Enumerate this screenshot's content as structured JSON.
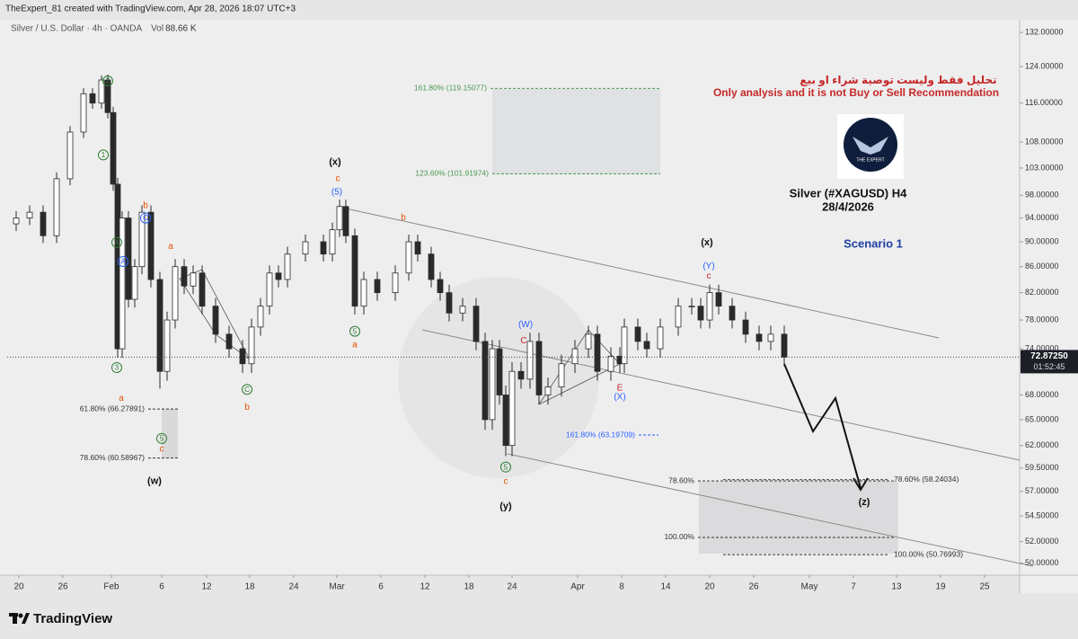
{
  "header": {
    "credit": "TheExpert_81 created with TradingView.com, Apr 28, 2026 18:07 UTC+3",
    "brand": "TradingView"
  },
  "chart_data": {
    "type": "candlestick",
    "symbol": "Silver / U.S. Dollar · 4h · OANDA",
    "volume_label": "Vol",
    "volume": "88.66 K",
    "disclaimer_ar": "تحليل فقط وليست توصية شراء او بيع",
    "disclaimer_en": "Only analysis and it is not Buy or Sell Recommendation",
    "title": "Silver (#XAGUSD) H4",
    "subtitle": "28/4/2026",
    "scenario": "Scenario 1",
    "logo_text": "THE EXPERT",
    "log_scale": true,
    "grid": false,
    "up_color": "#ffffff",
    "down_color": "#2a2a2a",
    "wick_color": "#2a2a2a",
    "xlim": [
      0,
      112.7
    ],
    "xticks": [
      {
        "value": 1.3,
        "label": "20"
      },
      {
        "value": 6.2,
        "label": "26"
      },
      {
        "value": 11.6,
        "label": "Feb"
      },
      {
        "value": 17.2,
        "label": "6"
      },
      {
        "value": 22.2,
        "label": "12"
      },
      {
        "value": 27,
        "label": "18"
      },
      {
        "value": 31.9,
        "label": "24"
      },
      {
        "value": 36.7,
        "label": "Mar"
      },
      {
        "value": 41.6,
        "label": "6"
      },
      {
        "value": 46.5,
        "label": "12"
      },
      {
        "value": 51.4,
        "label": "18"
      },
      {
        "value": 56.2,
        "label": "24"
      },
      {
        "value": 63.5,
        "label": "Apr"
      },
      {
        "value": 68.4,
        "label": "8"
      },
      {
        "value": 73.3,
        "label": "14"
      },
      {
        "value": 78.2,
        "label": "20"
      },
      {
        "value": 83.1,
        "label": "26"
      },
      {
        "value": 89.3,
        "label": "May"
      },
      {
        "value": 94.2,
        "label": "7"
      },
      {
        "value": 99,
        "label": "13"
      },
      {
        "value": 103.9,
        "label": "19"
      },
      {
        "value": 108.8,
        "label": "25"
      }
    ],
    "ylim": [
      48.9,
      135.1
    ],
    "yticks": [
      {
        "value": 132,
        "label": "132.00000"
      },
      {
        "value": 124,
        "label": "124.00000"
      },
      {
        "value": 116,
        "label": "116.00000"
      },
      {
        "value": 108,
        "label": "108.00000"
      },
      {
        "value": 103,
        "label": "103.00000"
      },
      {
        "value": 98,
        "label": "98.00000"
      },
      {
        "value": 94,
        "label": "94.00000"
      },
      {
        "value": 90,
        "label": "90.00000"
      },
      {
        "value": 86,
        "label": "86.00000"
      },
      {
        "value": 82,
        "label": "82.00000"
      },
      {
        "value": 78,
        "label": "78.00000"
      },
      {
        "value": 74,
        "label": "74.00000"
      },
      {
        "value": 68,
        "label": "68.00000"
      },
      {
        "value": 65,
        "label": "65.00000"
      },
      {
        "value": 62,
        "label": "62.00000"
      },
      {
        "value": 59.5,
        "label": "59.50000"
      },
      {
        "value": 57,
        "label": "57.00000"
      },
      {
        "value": 54.5,
        "label": "54.50000"
      },
      {
        "value": 52,
        "label": "52.00000"
      },
      {
        "value": 50,
        "label": "50.00000"
      }
    ],
    "x": [
      1,
      2.5,
      4,
      5.5,
      7,
      8.5,
      9.5,
      10.5,
      11.2,
      11.8,
      12.3,
      12.8,
      13.5,
      14.2,
      15,
      16,
      17,
      17.8,
      18.7,
      19.7,
      20.7,
      21.7,
      23.2,
      24.7,
      26.2,
      27.2,
      28.2,
      29.2,
      30.2,
      31.2,
      33.2,
      35.2,
      36.2,
      37,
      37.7,
      38.7,
      39.7,
      41.2,
      43.2,
      44.7,
      45.7,
      47.2,
      48.2,
      49.2,
      50.7,
      52.2,
      53.2,
      54,
      54.8,
      55.5,
      56.2,
      57.2,
      58.2,
      59.2,
      60.2,
      61.7,
      63.2,
      64.7,
      65.7,
      67.2,
      68.2,
      68.7,
      70.2,
      71.2,
      72.7,
      74.7,
      76.2,
      77.2,
      78.2,
      79.2,
      80.7,
      82.2,
      83.7,
      85,
      86.5
    ],
    "open": [
      93,
      94,
      95,
      91,
      101,
      110,
      118,
      116,
      121,
      114,
      100,
      74,
      94,
      81,
      86,
      95,
      84,
      71,
      78,
      86,
      83,
      85,
      80,
      76,
      74,
      72,
      77,
      80,
      85,
      84,
      88,
      90,
      88,
      92,
      96,
      91,
      80,
      84,
      82,
      85,
      90,
      88,
      84,
      82,
      79,
      80,
      75,
      65,
      74,
      68,
      62,
      71,
      70,
      75,
      68,
      69,
      72,
      74,
      76,
      71,
      73,
      72,
      77,
      75,
      74,
      77,
      80,
      80,
      78,
      82,
      80,
      78,
      76,
      75,
      76
    ],
    "high": [
      95.2,
      96.2,
      96.2,
      102.2,
      111.2,
      119.2,
      119.2,
      122,
      122.2,
      115.2,
      101.2,
      95.2,
      95.2,
      87.2,
      96.2,
      96.2,
      85.2,
      79.2,
      87.2,
      87.2,
      86.2,
      86.2,
      81.2,
      77.2,
      75.2,
      78.2,
      81.2,
      86.2,
      86.2,
      89.2,
      91.2,
      91.2,
      93.2,
      97.2,
      97.2,
      92.2,
      85.2,
      85.2,
      86.2,
      91.2,
      91.2,
      89.2,
      85.2,
      83.2,
      81.2,
      81.2,
      76.2,
      75.2,
      75.2,
      69.2,
      72.2,
      72.2,
      76.2,
      76.2,
      70.2,
      73.2,
      75.2,
      77.2,
      77.2,
      74.2,
      74.2,
      78.2,
      78.2,
      76.2,
      78.2,
      81.2,
      81.2,
      81.2,
      83.2,
      83.2,
      81.2,
      79.2,
      77.2,
      77.2,
      77.2
    ],
    "low": [
      91.8,
      92.8,
      89.8,
      89.8,
      99.8,
      108.8,
      114.8,
      114.8,
      112.8,
      98.8,
      72.8,
      72.8,
      79.8,
      79.8,
      84.8,
      82.8,
      68.8,
      69.8,
      76.8,
      81.8,
      81.8,
      78.8,
      74.8,
      72.8,
      70.8,
      70.8,
      75.8,
      78.8,
      82.8,
      82.8,
      86.8,
      86.8,
      86.8,
      90.8,
      89.8,
      78.8,
      78.8,
      80.8,
      80.8,
      83.8,
      86.8,
      82.8,
      80.8,
      77.8,
      77.8,
      73.8,
      63.8,
      63.8,
      66.8,
      60.8,
      60.8,
      68.8,
      68.8,
      66.8,
      66.8,
      67.8,
      70.8,
      72.8,
      69.8,
      69.8,
      70.8,
      70.8,
      73.8,
      72.8,
      72.8,
      75.8,
      78.8,
      76.8,
      76.8,
      78.8,
      76.8,
      74.8,
      73.8,
      73.8,
      71.67
    ],
    "close": [
      94,
      95,
      91,
      101,
      110,
      118,
      116,
      121,
      114,
      100,
      74,
      94,
      81,
      86,
      95,
      84,
      71,
      78,
      86,
      83,
      85,
      80,
      76,
      74,
      72,
      77,
      80,
      85,
      84,
      88,
      90,
      88,
      92,
      96,
      91,
      80,
      84,
      82,
      85,
      90,
      88,
      84,
      82,
      79,
      80,
      75,
      65,
      74,
      68,
      62,
      71,
      70,
      75,
      68,
      69,
      72,
      74,
      76,
      71,
      73,
      72,
      77,
      75,
      74,
      77,
      80,
      80,
      78,
      82,
      80,
      78,
      76,
      75,
      76,
      72.87
    ],
    "last": {
      "value": 72.8725,
      "label": "72.87250"
    },
    "countdown": "01:52:45",
    "levels": [
      {
        "label": "161.80% (119.15077)",
        "value": 119.15077,
        "x": [
          53.8,
          72.7
        ],
        "side": "left",
        "color": "#4a9a4e"
      },
      {
        "label": "123.60% (101.91974)",
        "value": 101.91974,
        "x": [
          54,
          72.7
        ],
        "side": "left",
        "color": "#4a9a4e"
      },
      {
        "label": "61.80% (66.27891)",
        "value": 66.27891,
        "x": [
          15.7,
          19
        ],
        "side": "left",
        "color": "#333333"
      },
      {
        "label": "78.60% (60.58967)",
        "value": 60.58967,
        "x": [
          15.7,
          19
        ],
        "side": "left",
        "color": "#333333"
      },
      {
        "label": "161.80% (63.19709)",
        "value": 63.19709,
        "x": [
          70.3,
          72.5
        ],
        "side": "left",
        "color": "#2962ff"
      },
      {
        "label": "78.60%",
        "value": 58.1,
        "x": [
          76.9,
          98.7
        ],
        "side": "left",
        "color": "#333333"
      },
      {
        "label": "100.00%",
        "value": 52.4,
        "x": [
          76.9,
          98.7
        ],
        "side": "left",
        "color": "#333333"
      },
      {
        "label": "78.60% (58.24034)",
        "value": 58.24034,
        "x": [
          79.7,
          98.2
        ],
        "side": "right",
        "color": "#333333"
      },
      {
        "label": "100.00% (50.76993)",
        "value": 50.76993,
        "x": [
          79.7,
          98.2
        ],
        "side": "right",
        "color": "#333333"
      }
    ],
    "annotations": [
      {
        "text": "(x)",
        "x": 36.5,
        "y": 104.2,
        "color": "#111111",
        "circle": false
      },
      {
        "text": "(w)",
        "x": 16.4,
        "y": 58.1,
        "color": "#111111",
        "circle": false
      },
      {
        "text": "(y)",
        "x": 55.5,
        "y": 55.5,
        "color": "#111111",
        "circle": false
      },
      {
        "text": "(x)",
        "x": 77.9,
        "y": 89.9,
        "color": "#111111",
        "circle": false
      },
      {
        "text": "(z)",
        "x": 95.4,
        "y": 55.9,
        "color": "#111111",
        "circle": false
      },
      {
        "text": "2",
        "x": 11.2,
        "y": 120.8,
        "color": "#2e7d32",
        "circle": true
      },
      {
        "text": "1",
        "x": 10.7,
        "y": 105.5,
        "color": "#2e7d32",
        "circle": true
      },
      {
        "text": "b",
        "x": 15.4,
        "y": 96.2,
        "color": "#e65100",
        "circle": false
      },
      {
        "text": "C",
        "x": 15.4,
        "y": 94.0,
        "color": "#2962ff",
        "circle": true
      },
      {
        "text": "4",
        "x": 12.2,
        "y": 89.9,
        "color": "#2e7d32",
        "circle": true
      },
      {
        "text": "a",
        "x": 18.2,
        "y": 89.3,
        "color": "#e65100",
        "circle": false
      },
      {
        "text": "A",
        "x": 12.9,
        "y": 86.8,
        "color": "#2962ff",
        "circle": true
      },
      {
        "text": "3",
        "x": 12.2,
        "y": 71.5,
        "color": "#2e7d32",
        "circle": true
      },
      {
        "text": "a",
        "x": 12.7,
        "y": 67.6,
        "color": "#e65100",
        "circle": false
      },
      {
        "text": "5",
        "x": 17.2,
        "y": 62.8,
        "color": "#2e7d32",
        "circle": true
      },
      {
        "text": "c",
        "x": 17.2,
        "y": 61.6,
        "color": "#e65100",
        "circle": false
      },
      {
        "text": "C",
        "x": 26.7,
        "y": 68.7,
        "color": "#2e7d32",
        "circle": true
      },
      {
        "text": "b",
        "x": 26.7,
        "y": 66.5,
        "color": "#e65100",
        "circle": false
      },
      {
        "text": "(5)",
        "x": 36.7,
        "y": 98.6,
        "color": "#2962ff",
        "circle": false
      },
      {
        "text": "c",
        "x": 36.8,
        "y": 101.1,
        "color": "#e65100",
        "circle": false
      },
      {
        "text": "b",
        "x": 44.1,
        "y": 94.1,
        "color": "#e65100",
        "circle": false
      },
      {
        "text": "5",
        "x": 38.7,
        "y": 76.4,
        "color": "#2e7d32",
        "circle": true
      },
      {
        "text": "a",
        "x": 38.7,
        "y": 74.6,
        "color": "#e65100",
        "circle": false
      },
      {
        "text": "(W)",
        "x": 57.7,
        "y": 77.4,
        "color": "#2962ff",
        "circle": false
      },
      {
        "text": "C",
        "x": 57.5,
        "y": 75.1,
        "color": "#c62828",
        "circle": false
      },
      {
        "text": "5",
        "x": 55.5,
        "y": 59.6,
        "color": "#2e7d32",
        "circle": true
      },
      {
        "text": "c",
        "x": 55.5,
        "y": 58.1,
        "color": "#e65100",
        "circle": false
      },
      {
        "text": "(Y)",
        "x": 78.1,
        "y": 86.1,
        "color": "#2962ff",
        "circle": false
      },
      {
        "text": "c",
        "x": 78.1,
        "y": 84.6,
        "color": "#c62828",
        "circle": false
      },
      {
        "text": "E",
        "x": 68.2,
        "y": 68.9,
        "color": "#c62828",
        "circle": false
      },
      {
        "text": "(X)",
        "x": 68.2,
        "y": 67.8,
        "color": "#2962ff",
        "circle": false
      }
    ]
  }
}
